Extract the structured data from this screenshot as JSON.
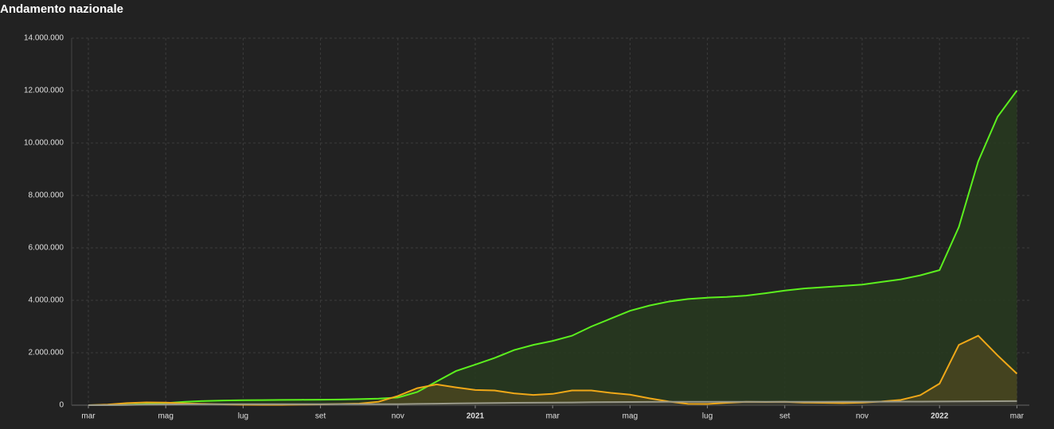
{
  "chart_data": {
    "type": "line",
    "title": "Andamento nazionale",
    "categories": [
      "mar",
      null,
      null,
      null,
      "mag",
      null,
      null,
      null,
      "lug",
      null,
      null,
      null,
      "set",
      null,
      null,
      null,
      "nov",
      null,
      null,
      null,
      "2021",
      null,
      null,
      null,
      "mar",
      null,
      null,
      null,
      "mag",
      null,
      null,
      null,
      "lug",
      null,
      null,
      null,
      "set",
      null,
      null,
      null,
      "nov",
      null,
      null,
      null,
      "2022",
      null,
      null,
      null,
      "mar"
    ],
    "series": [
      {
        "color": "#5cf01e",
        "fill": "#27391f",
        "values": [
          0,
          2000,
          16000,
          45000,
          80000,
          130000,
          160000,
          180000,
          190000,
          195000,
          200000,
          205000,
          210000,
          215000,
          230000,
          250000,
          290000,
          500000,
          900000,
          1300000,
          1550000,
          1800000,
          2100000,
          2300000,
          2450000,
          2650000,
          3000000,
          3300000,
          3600000,
          3800000,
          3950000,
          4050000,
          4100000,
          4130000,
          4180000,
          4270000,
          4370000,
          4450000,
          4500000,
          4550000,
          4600000,
          4700000,
          4800000,
          4950000,
          5150000,
          6800000,
          9300000,
          11000000,
          12000000
        ]
      },
      {
        "color": "#f0a818",
        "fill": "#4a4520",
        "values": [
          1000,
          20000,
          80000,
          105000,
          100000,
          70000,
          50000,
          30000,
          15000,
          12000,
          13000,
          20000,
          30000,
          45000,
          60000,
          130000,
          350000,
          650000,
          790000,
          680000,
          580000,
          560000,
          450000,
          390000,
          430000,
          560000,
          560000,
          470000,
          400000,
          260000,
          140000,
          50000,
          45000,
          90000,
          130000,
          120000,
          130000,
          100000,
          90000,
          80000,
          100000,
          140000,
          200000,
          380000,
          820000,
          2300000,
          2650000,
          1900000,
          1200000
        ]
      },
      {
        "color": "#9a9a8a",
        "fill": "#3a3a36",
        "values": [
          0,
          1000,
          10000,
          20000,
          28000,
          32000,
          34000,
          35000,
          35000,
          35000,
          35500,
          35500,
          36000,
          36000,
          37000,
          38000,
          40000,
          48000,
          58000,
          68000,
          75000,
          83000,
          90000,
          94000,
          98000,
          104000,
          112000,
          117000,
          120000,
          125000,
          126000,
          127000,
          128000,
          128000,
          128500,
          129000,
          130000,
          131000,
          131500,
          132000,
          133000,
          134000,
          135000,
          136000,
          138000,
          143000,
          149000,
          153000,
          155000
        ]
      }
    ],
    "ylim": [
      0,
      14000000
    ],
    "yticks": [
      {
        "value": 0,
        "label": "0"
      },
      {
        "value": 2000000,
        "label": "2.000.000"
      },
      {
        "value": 4000000,
        "label": "4.000.000"
      },
      {
        "value": 6000000,
        "label": "6.000.000"
      },
      {
        "value": 8000000,
        "label": "8.000.000"
      },
      {
        "value": 10000000,
        "label": "10.000.000"
      },
      {
        "value": 12000000,
        "label": "12.000.000"
      },
      {
        "value": 14000000,
        "label": "14.000.000"
      }
    ],
    "grid": true
  }
}
